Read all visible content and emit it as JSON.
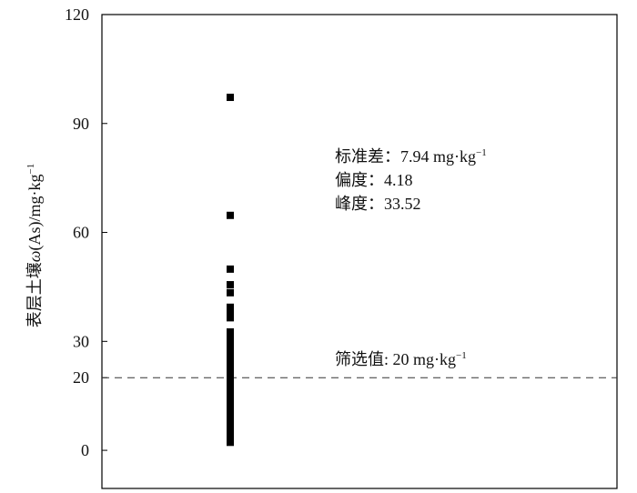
{
  "chart_data": {
    "type": "strip",
    "y_label": [
      "表层土壤",
      "ω",
      "(As)/mg·kg",
      "−1"
    ],
    "values": [
      97.2,
      64.7,
      49.9,
      45.6,
      43.4,
      39.4,
      37.8,
      36.5,
      32.6,
      30.8,
      30,
      29,
      28,
      27,
      26,
      25,
      24,
      23,
      22,
      21,
      20,
      19,
      18,
      17,
      16,
      15,
      14,
      13,
      12,
      11,
      10,
      9,
      8,
      7,
      6,
      5,
      4,
      3,
      2.2
    ],
    "color": "#000000",
    "ylim": [
      -10.5,
      120
    ],
    "yticks": [
      0,
      20,
      30,
      60,
      90,
      120
    ],
    "threshold": {
      "value": 20,
      "text": "筛选值: 20 mg·kg",
      "sup": "−1"
    },
    "annotations": [
      {
        "text": "标准差：7.94 mg·kg",
        "sup": "−1"
      },
      {
        "text": "偏度：4.18"
      },
      {
        "text": "峰度：33.52"
      }
    ]
  }
}
